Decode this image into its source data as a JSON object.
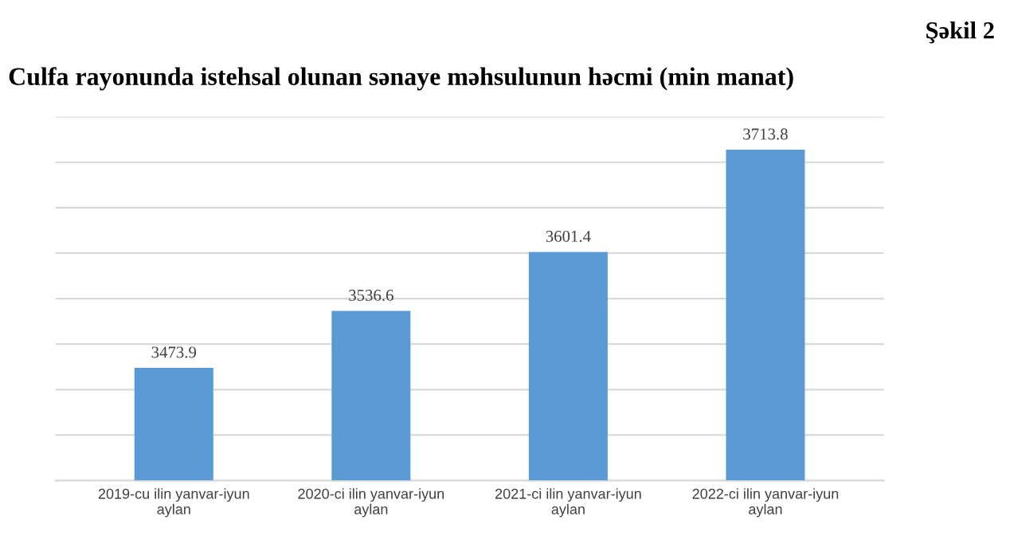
{
  "chart_data": {
    "type": "bar",
    "title": "Culfa rayonunda istehsal olunan sənaye məhsulunun həcmi (min manat)",
    "subtitle": "Şəkil 2",
    "categories": [
      "2019-cu ilin yanvar-iyun aylan",
      "2020-ci ilin yanvar-iyun aylan",
      "2021-ci ilin yanvar-iyun aylan",
      "2022-ci ilin yanvar-iyun aylan"
    ],
    "values": [
      3473.9,
      3536.6,
      3601.4,
      3713.8
    ],
    "color": "#5b9bd5",
    "data_labels": true,
    "ylim": [
      3350,
      3750
    ],
    "yticks": [
      {
        "value": 3350,
        "label": null
      },
      {
        "value": 3400,
        "label": null
      },
      {
        "value": 3450,
        "label": null
      },
      {
        "value": 3500,
        "label": null
      },
      {
        "value": 3550,
        "label": null
      },
      {
        "value": 3600,
        "label": null
      },
      {
        "value": 3650,
        "label": null
      },
      {
        "value": 3700,
        "label": null
      },
      {
        "value": 3750,
        "label": null
      }
    ],
    "grid": "y",
    "tick_labels": "x"
  }
}
